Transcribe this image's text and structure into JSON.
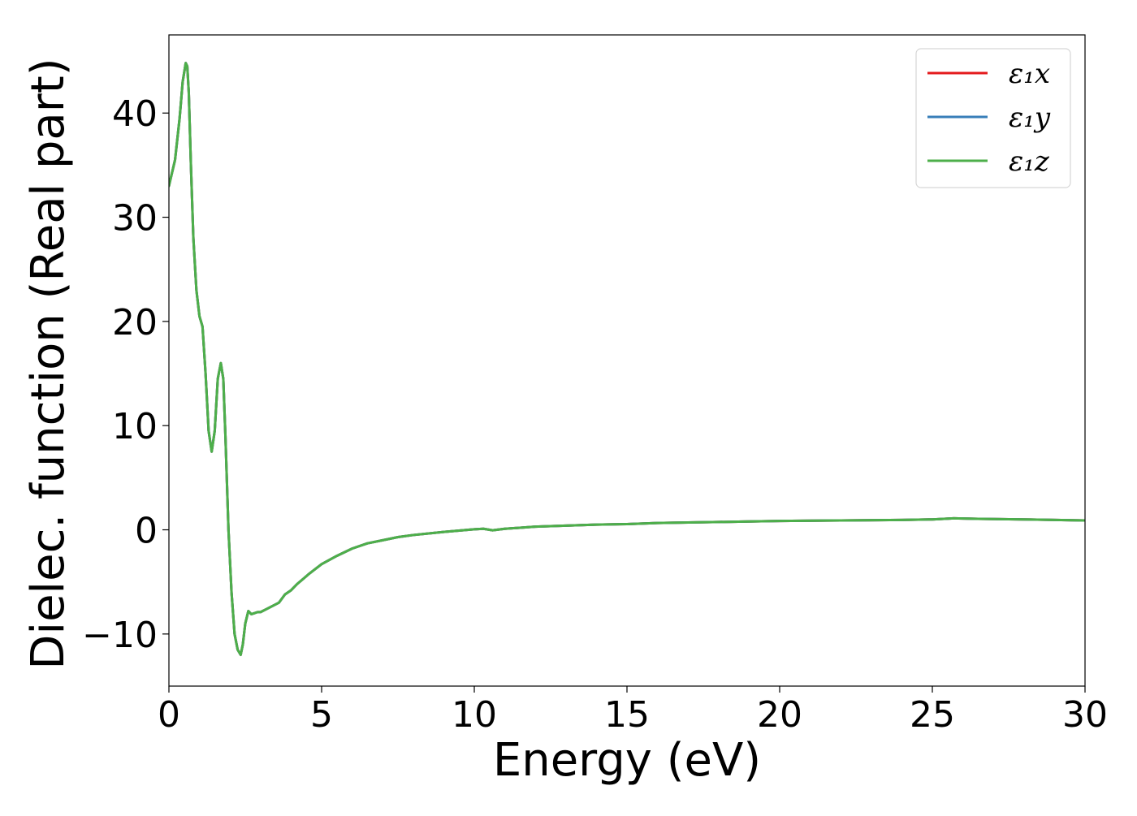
{
  "chart_data": {
    "type": "line",
    "title": "",
    "xlabel": "Energy (eV)",
    "ylabel": "Dielec. function (Real part)",
    "xlim": [
      0,
      30
    ],
    "ylim": [
      -15,
      47.5
    ],
    "xticks": [
      0,
      5,
      10,
      15,
      20,
      25,
      30
    ],
    "xtick_labels": [
      "0",
      "5",
      "10",
      "15",
      "20",
      "25",
      "30"
    ],
    "yticks": [
      -10,
      0,
      10,
      20,
      30,
      40
    ],
    "ytick_labels": [
      "−10",
      "0",
      "10",
      "20",
      "30",
      "40"
    ],
    "grid": false,
    "legend_position": "top-right",
    "series": [
      {
        "name": "ε₁x",
        "color": "#e41a1c",
        "x": [
          0,
          0.2,
          0.35,
          0.45,
          0.55,
          0.6,
          0.65,
          0.72,
          0.8,
          0.9,
          1.0,
          1.1,
          1.2,
          1.3,
          1.4,
          1.5,
          1.6,
          1.7,
          1.78,
          1.85,
          1.95,
          2.05,
          2.15,
          2.25,
          2.35,
          2.42,
          2.5,
          2.6,
          2.7,
          2.8,
          2.9,
          3.0,
          3.2,
          3.4,
          3.6,
          3.8,
          4.0,
          4.2,
          4.4,
          4.6,
          5.0,
          5.5,
          6.0,
          6.5,
          7.0,
          7.5,
          8.0,
          9.0,
          10.0,
          10.3,
          10.6,
          11,
          12,
          13,
          14,
          15,
          16,
          17,
          18,
          19,
          20,
          22,
          24,
          25,
          25.7,
          26.5,
          28,
          30
        ],
        "y": [
          33.0,
          35.5,
          39.5,
          43.0,
          44.8,
          44.5,
          42.0,
          35.0,
          28.0,
          23.0,
          20.5,
          19.5,
          15.0,
          9.5,
          7.5,
          9.5,
          14.5,
          16.0,
          14.5,
          9.0,
          0.0,
          -6.0,
          -10.0,
          -11.5,
          -12.0,
          -11.0,
          -9.0,
          -7.8,
          -8.1,
          -8.0,
          -7.9,
          -7.9,
          -7.6,
          -7.3,
          -7.0,
          -6.2,
          -5.8,
          -5.2,
          -4.7,
          -4.2,
          -3.3,
          -2.5,
          -1.8,
          -1.3,
          -1.0,
          -0.7,
          -0.5,
          -0.2,
          0.05,
          0.1,
          -0.05,
          0.1,
          0.3,
          0.4,
          0.5,
          0.55,
          0.65,
          0.7,
          0.75,
          0.8,
          0.85,
          0.9,
          0.95,
          1.0,
          1.1,
          1.05,
          1.0,
          0.9
        ]
      },
      {
        "name": "ε₁y",
        "color": "#377eb8",
        "x": [
          0,
          0.2,
          0.35,
          0.45,
          0.55,
          0.6,
          0.65,
          0.72,
          0.8,
          0.9,
          1.0,
          1.1,
          1.2,
          1.3,
          1.4,
          1.5,
          1.6,
          1.7,
          1.78,
          1.85,
          1.95,
          2.05,
          2.15,
          2.25,
          2.35,
          2.42,
          2.5,
          2.6,
          2.7,
          2.8,
          2.9,
          3.0,
          3.2,
          3.4,
          3.6,
          3.8,
          4.0,
          4.2,
          4.4,
          4.6,
          5.0,
          5.5,
          6.0,
          6.5,
          7.0,
          7.5,
          8.0,
          9.0,
          10.0,
          10.3,
          10.6,
          11,
          12,
          13,
          14,
          15,
          16,
          17,
          18,
          19,
          20,
          22,
          24,
          25,
          25.7,
          26.5,
          28,
          30
        ],
        "y": [
          33.0,
          35.5,
          39.5,
          43.0,
          44.8,
          44.5,
          42.0,
          35.0,
          28.0,
          23.0,
          20.5,
          19.5,
          15.0,
          9.5,
          7.5,
          9.5,
          14.5,
          16.0,
          14.5,
          9.0,
          0.0,
          -6.0,
          -10.0,
          -11.5,
          -12.0,
          -11.0,
          -9.0,
          -7.8,
          -8.1,
          -8.0,
          -7.9,
          -7.9,
          -7.6,
          -7.3,
          -7.0,
          -6.2,
          -5.8,
          -5.2,
          -4.7,
          -4.2,
          -3.3,
          -2.5,
          -1.8,
          -1.3,
          -1.0,
          -0.7,
          -0.5,
          -0.2,
          0.05,
          0.1,
          -0.05,
          0.1,
          0.3,
          0.4,
          0.5,
          0.55,
          0.65,
          0.7,
          0.75,
          0.8,
          0.85,
          0.9,
          0.95,
          1.0,
          1.1,
          1.05,
          1.0,
          0.9
        ]
      },
      {
        "name": "ε₁z",
        "color": "#4daf4a",
        "x": [
          0,
          0.2,
          0.35,
          0.45,
          0.55,
          0.6,
          0.65,
          0.72,
          0.8,
          0.9,
          1.0,
          1.1,
          1.2,
          1.3,
          1.4,
          1.5,
          1.6,
          1.7,
          1.78,
          1.85,
          1.95,
          2.05,
          2.15,
          2.25,
          2.35,
          2.42,
          2.5,
          2.6,
          2.7,
          2.8,
          2.9,
          3.0,
          3.2,
          3.4,
          3.6,
          3.8,
          4.0,
          4.2,
          4.4,
          4.6,
          5.0,
          5.5,
          6.0,
          6.5,
          7.0,
          7.5,
          8.0,
          9.0,
          10.0,
          10.3,
          10.6,
          11,
          12,
          13,
          14,
          15,
          16,
          17,
          18,
          19,
          20,
          22,
          24,
          25,
          25.7,
          26.5,
          28,
          30
        ],
        "y": [
          33.0,
          35.5,
          39.5,
          43.0,
          44.8,
          44.5,
          42.0,
          35.0,
          28.0,
          23.0,
          20.5,
          19.5,
          15.0,
          9.5,
          7.5,
          9.5,
          14.5,
          16.0,
          14.5,
          9.0,
          0.0,
          -6.0,
          -10.0,
          -11.5,
          -12.0,
          -11.0,
          -9.0,
          -7.8,
          -8.1,
          -8.0,
          -7.9,
          -7.9,
          -7.6,
          -7.3,
          -7.0,
          -6.2,
          -5.8,
          -5.2,
          -4.7,
          -4.2,
          -3.3,
          -2.5,
          -1.8,
          -1.3,
          -1.0,
          -0.7,
          -0.5,
          -0.2,
          0.05,
          0.1,
          -0.05,
          0.1,
          0.3,
          0.4,
          0.5,
          0.55,
          0.65,
          0.7,
          0.75,
          0.8,
          0.85,
          0.9,
          0.95,
          1.0,
          1.1,
          1.05,
          1.0,
          0.9
        ]
      }
    ]
  }
}
